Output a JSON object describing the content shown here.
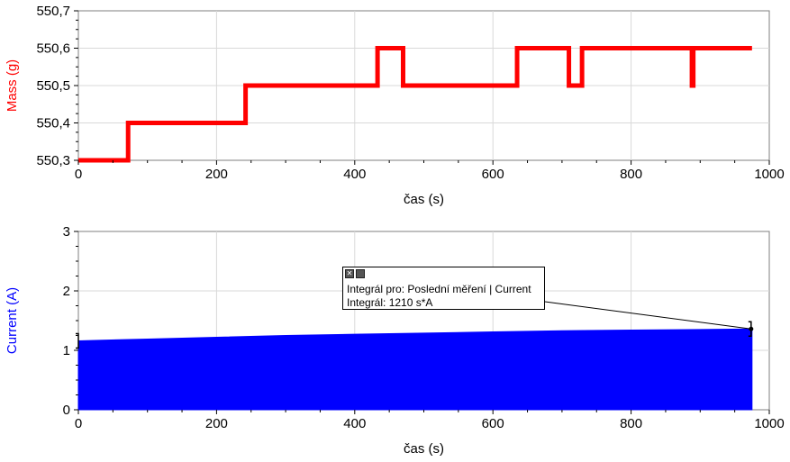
{
  "chart_data": [
    {
      "type": "line",
      "xlabel": "čas (s)",
      "ylabel": "Mass (g)",
      "color": "#ff0000",
      "xlim": [
        0,
        1000
      ],
      "ylim": [
        550.3,
        550.7
      ],
      "xticks": [
        "0",
        "200",
        "400",
        "600",
        "800",
        "1000"
      ],
      "yticks": [
        "550,3",
        "550,4",
        "550,5",
        "550,6",
        "550,7"
      ],
      "grid": true,
      "series": [
        {
          "x": [
            0,
            72,
            72,
            242,
            242,
            433,
            433,
            470,
            470,
            635,
            635,
            710,
            710,
            729,
            729,
            888,
            888,
            890,
            890,
            975
          ],
          "y": [
            550.3,
            550.3,
            550.4,
            550.4,
            550.5,
            550.5,
            550.6,
            550.6,
            550.5,
            550.5,
            550.6,
            550.6,
            550.5,
            550.5,
            550.6,
            550.6,
            550.5,
            550.5,
            550.6,
            550.6
          ]
        }
      ]
    },
    {
      "type": "area",
      "xlabel": "čas (s)",
      "ylabel": "Current (A)",
      "color": "#0000ff",
      "xlim": [
        0,
        1000
      ],
      "ylim": [
        0,
        3
      ],
      "xticks": [
        "0",
        "200",
        "400",
        "600",
        "800",
        "1000"
      ],
      "yticks": [
        "0",
        "1",
        "2",
        "3"
      ],
      "grid": true,
      "series": [
        {
          "x": [
            0,
            100,
            200,
            300,
            400,
            500,
            600,
            700,
            800,
            900,
            975
          ],
          "y": [
            1.16,
            1.19,
            1.22,
            1.25,
            1.27,
            1.29,
            1.31,
            1.33,
            1.34,
            1.35,
            1.36
          ]
        }
      ],
      "integral_range": [
        0,
        975
      ]
    }
  ],
  "annotation": {
    "line1": "Integrál pro: Poslední měření | Current",
    "line2": "Integrál: 1210 s*A",
    "icons": [
      "pin-icon",
      "close-icon"
    ]
  }
}
